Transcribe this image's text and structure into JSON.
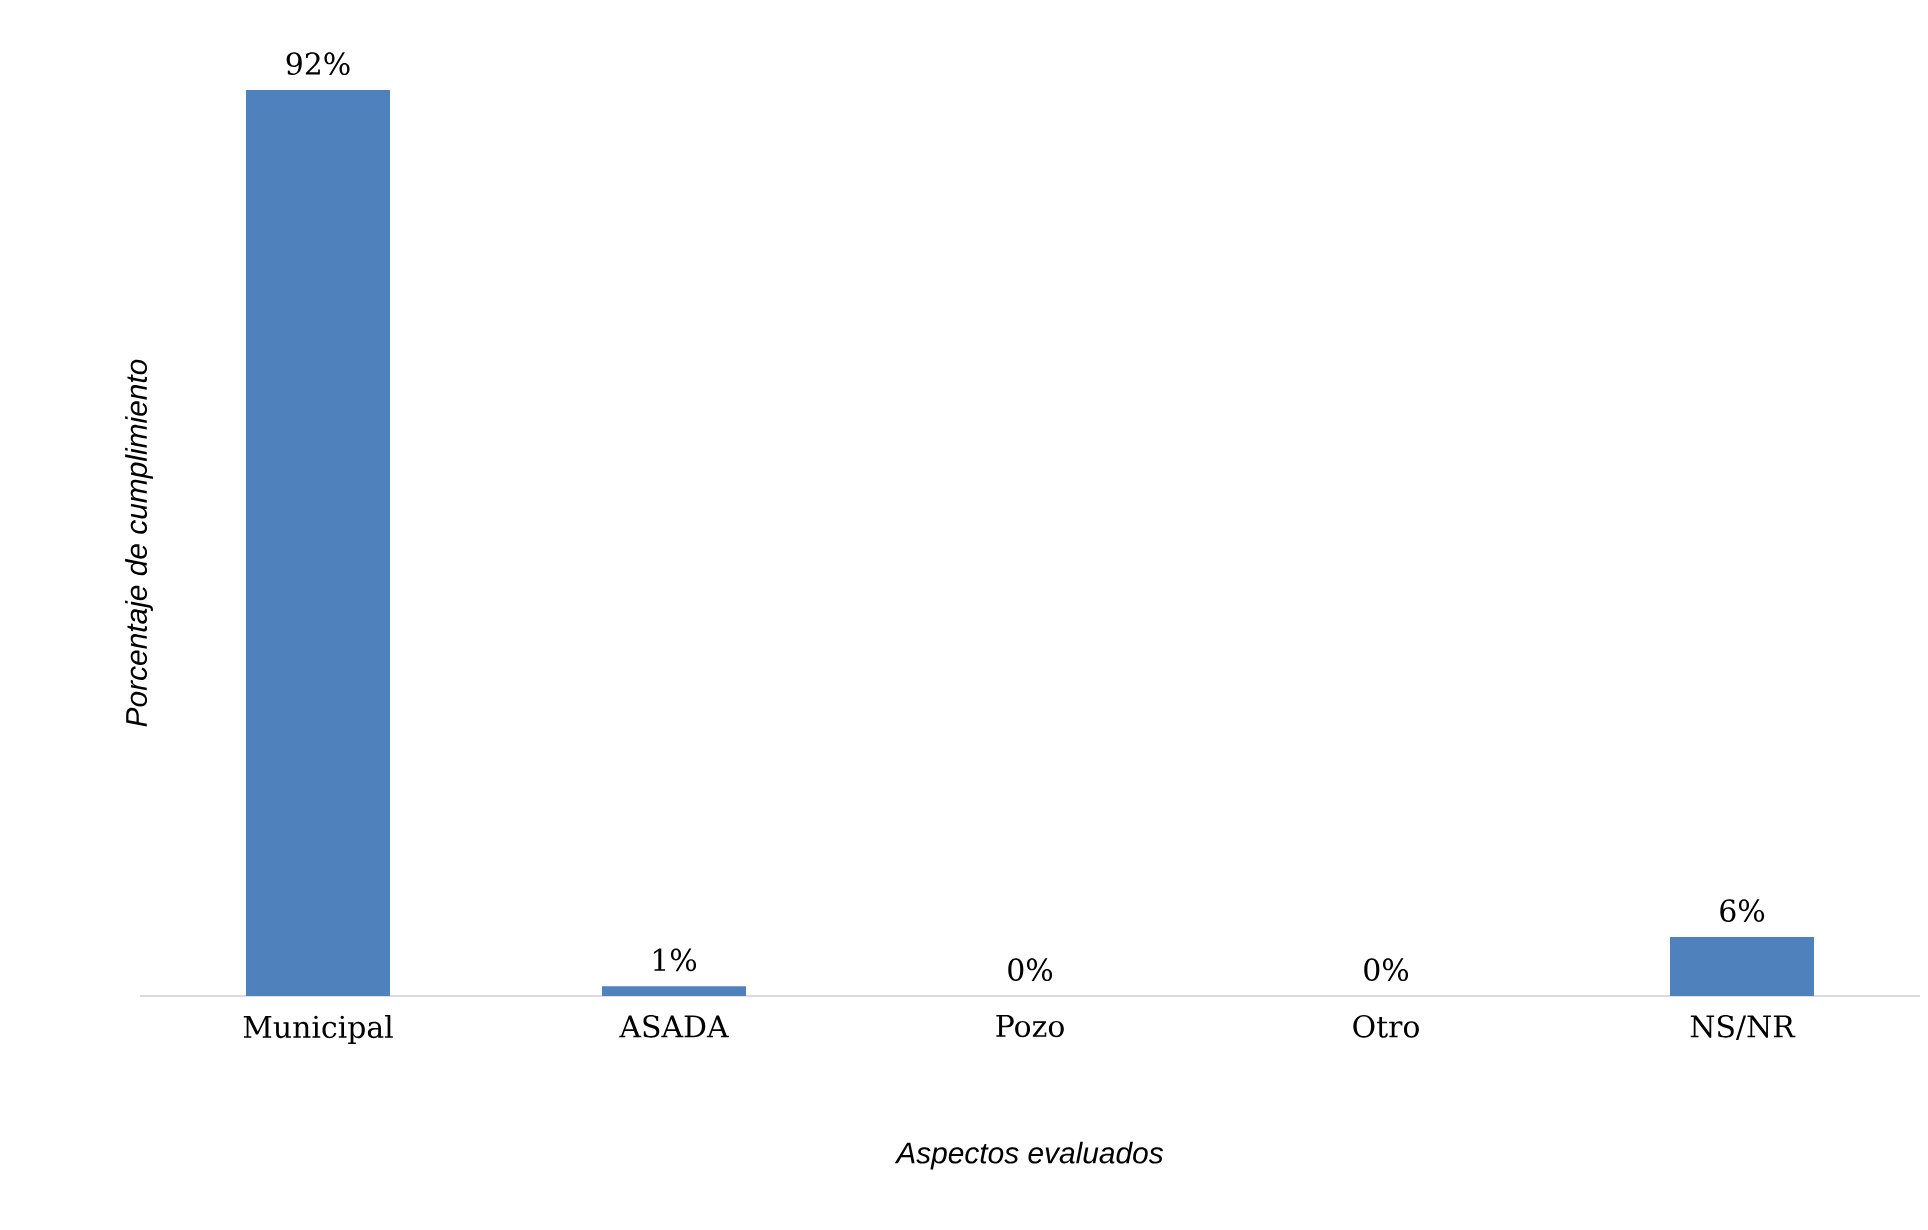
{
  "chart_data": {
    "type": "bar",
    "categories": [
      "Municipal",
      "ASADA",
      "Pozo",
      "Otro",
      "NS/NR"
    ],
    "values": [
      92,
      1,
      0,
      0,
      6
    ],
    "value_labels": [
      "92%",
      "1%",
      "0%",
      "0%",
      "6%"
    ],
    "color": "#4f81bd",
    "xlabel": "Aspectos evaluados",
    "ylabel": "Porcentaje de cumplimiento"
  }
}
